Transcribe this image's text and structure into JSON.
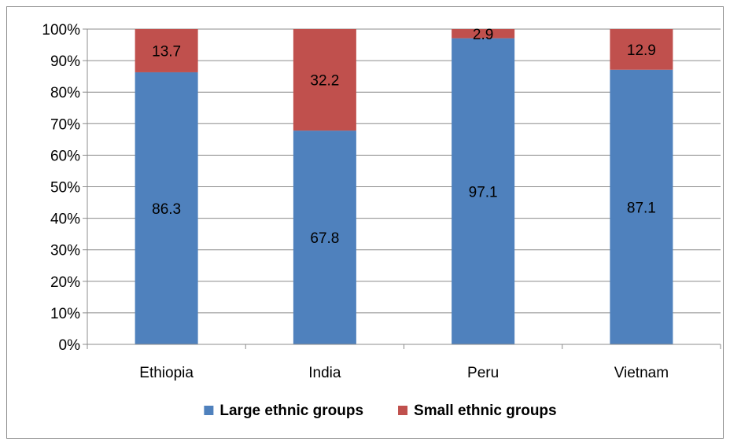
{
  "chart_data": {
    "type": "bar",
    "stacked": true,
    "percent": true,
    "categories": [
      "Ethiopia",
      "India",
      "Peru",
      "Vietnam"
    ],
    "series": [
      {
        "name": "Large ethnic groups",
        "values": [
          86.3,
          67.8,
          97.1,
          87.1
        ],
        "color": "#4F81BD"
      },
      {
        "name": "Small ethnic groups",
        "values": [
          13.7,
          32.2,
          2.9,
          12.9
        ],
        "color": "#C0504D"
      }
    ],
    "title": "",
    "xlabel": "",
    "ylabel": "",
    "ylim": [
      0,
      100
    ],
    "yticks": [
      "0%",
      "10%",
      "20%",
      "30%",
      "40%",
      "50%",
      "60%",
      "70%",
      "80%",
      "90%",
      "100%"
    ],
    "grid": true,
    "legend_position": "bottom"
  }
}
